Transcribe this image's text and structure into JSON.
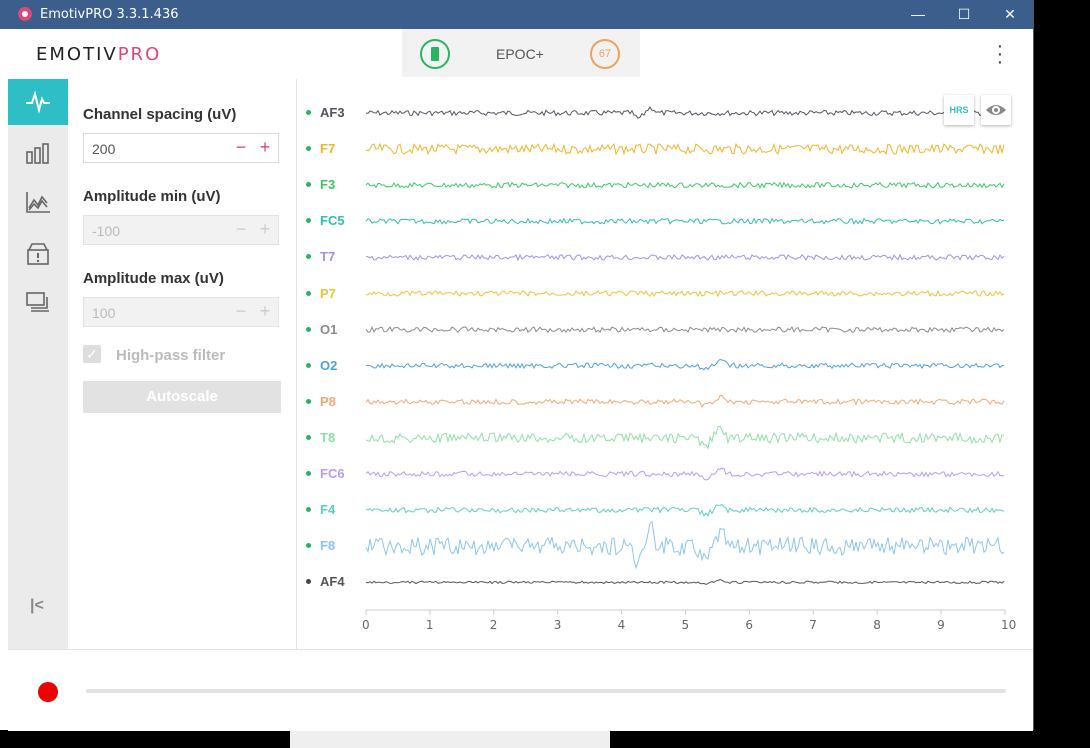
{
  "window": {
    "title": "EmotivPRO 3.3.1.436",
    "minimize": "—",
    "maximize": "☐",
    "close": "✕"
  },
  "header": {
    "logo_a": "EMOTIV",
    "logo_b": "PRO",
    "device_name": "EPOC+",
    "quality": "67"
  },
  "sidebar": {
    "items": [
      "eeg-waveform-icon",
      "bar-chart-icon",
      "line-chart-icon",
      "alert-box-icon",
      "screens-icon"
    ],
    "collapse": "|<"
  },
  "settings": {
    "channel_spacing_label": "Channel spacing (uV)",
    "channel_spacing_value": "200",
    "amp_min_label": "Amplitude min (uV)",
    "amp_min_value": "-100",
    "amp_max_label": "Amplitude max (uV)",
    "amp_max_value": "100",
    "highpass_label": "High-pass filter",
    "autoscale_label": "Autoscale",
    "minus": "−",
    "plus": "+"
  },
  "plot": {
    "hrs_label": "HRS",
    "channels": [
      {
        "name": "AF3",
        "color": "#505560"
      },
      {
        "name": "F7",
        "color": "#f0b429"
      },
      {
        "name": "F3",
        "color": "#3cc867"
      },
      {
        "name": "FC5",
        "color": "#2ebfb0"
      },
      {
        "name": "T7",
        "color": "#a68ee8"
      },
      {
        "name": "P7",
        "color": "#e8c53a"
      },
      {
        "name": "O1",
        "color": "#8a8a8a"
      },
      {
        "name": "O2",
        "color": "#4aa3e0"
      },
      {
        "name": "P8",
        "color": "#f0a878"
      },
      {
        "name": "T8",
        "color": "#8fe0a6"
      },
      {
        "name": "FC6",
        "color": "#b89cf0"
      },
      {
        "name": "F4",
        "color": "#5ad0c4"
      },
      {
        "name": "F8",
        "color": "#8cc6ec"
      },
      {
        "name": "AF4",
        "color": "#555555"
      }
    ],
    "x_ticks": [
      "0",
      "1",
      "2",
      "3",
      "4",
      "5",
      "6",
      "7",
      "8",
      "9",
      "10"
    ]
  }
}
